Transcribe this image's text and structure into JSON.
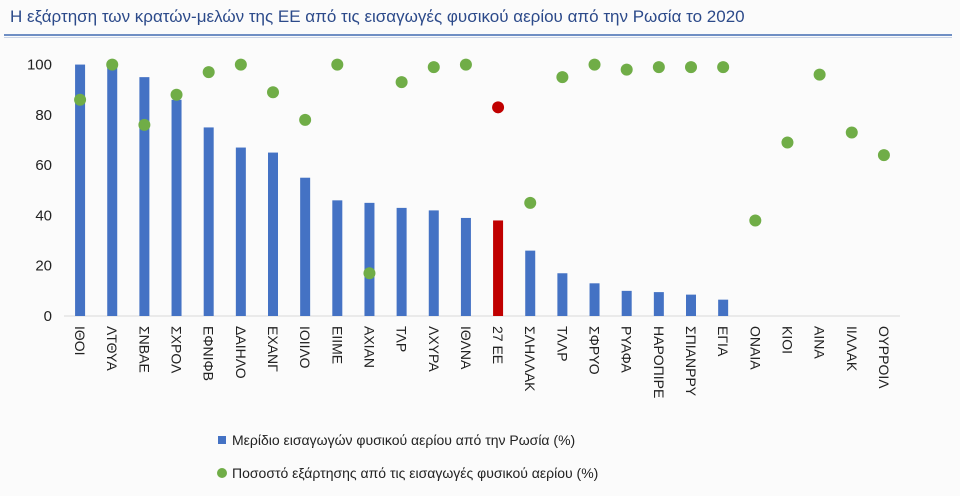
{
  "title": "Η εξάρτηση των κρατών-μελών της ΕΕ από τις εισαγωγές φυσικού αερίου από την Ρωσία το 2020",
  "colors": {
    "bar": "#4472c4",
    "bar_highlight": "#c00000",
    "dot": "#70ad47",
    "dot_highlight": "#c00000",
    "title": "#2c4a8a"
  },
  "chart_data": {
    "type": "bar",
    "title": "Η εξάρτηση των κρατών-μελών της ΕΕ από τις εισαγωγές φυσικού αερίου από την Ρωσία το 2020",
    "categories": [
      "ΙΘΟΙ",
      "ΛΤΘΥΑ",
      "ΣΝΒΑΕ",
      "ΣΧΡΟΛ",
      "ΕΦΝΙΦΒ",
      "ΔΑΙΗΛΟ",
      "ΕΧΑΝΓ",
      "ΙΟΙΙΛΟ",
      "ΕΙΙΜΕ",
      "ΑΧΙΑΝ",
      "ΤΛΡ",
      "ΛΧΥΡΑ",
      "ΙΘΛΝΑ",
      "27 ΕΕ",
      "ΣΛΗΛΛΑΚ",
      "ΤΛΛΡ",
      "ΣΦΡΥΟ",
      "ΡΥΑΦΑ",
      "ΗΑΡΟΠΙΡΕ",
      "ΣΠΙΑΝΡΡΥ",
      "ΕΓΙΑ",
      "ΟΝΑΙΑ",
      "ΚΙΟΙ",
      "ΑΙΝΑ",
      "ΙΙΛΛΑΚ",
      "ΟΥΡΡΟΙΛ"
    ],
    "series": [
      {
        "name": "Μερίδιο εισαγωγών φυσικού αερίου από την Ρωσία (%)",
        "kind": "bar",
        "values": [
          100,
          100,
          95,
          86,
          75,
          67,
          65,
          55,
          46,
          45,
          43,
          42,
          39,
          38,
          26,
          17,
          13,
          10,
          9.5,
          8.5,
          6.5,
          0,
          0,
          0,
          0,
          0
        ]
      },
      {
        "name": "Ποσοστό εξάρτησης από τις εισαγωγές φυσικού αερίου (%)",
        "kind": "dot",
        "values": [
          86,
          100,
          76,
          88,
          97,
          100,
          89,
          78,
          100,
          17,
          93,
          99,
          100,
          83,
          45,
          95,
          100,
          98,
          99,
          99,
          99,
          38,
          69,
          96,
          73,
          64
        ]
      }
    ],
    "highlight_index": 13,
    "ylim": [
      0,
      105
    ],
    "yticks": [
      0,
      20,
      40,
      60,
      80,
      100
    ],
    "grid": false,
    "legend_position": "bottom-left"
  },
  "legend": [
    {
      "label": "Μερίδιο εισαγωγών φυσικού αερίου από την Ρωσία (%)",
      "marker": "square"
    },
    {
      "label": "Ποσοστό εξάρτησης από τις εισαγωγές φυσικού αερίου (%)",
      "marker": "circle"
    }
  ]
}
